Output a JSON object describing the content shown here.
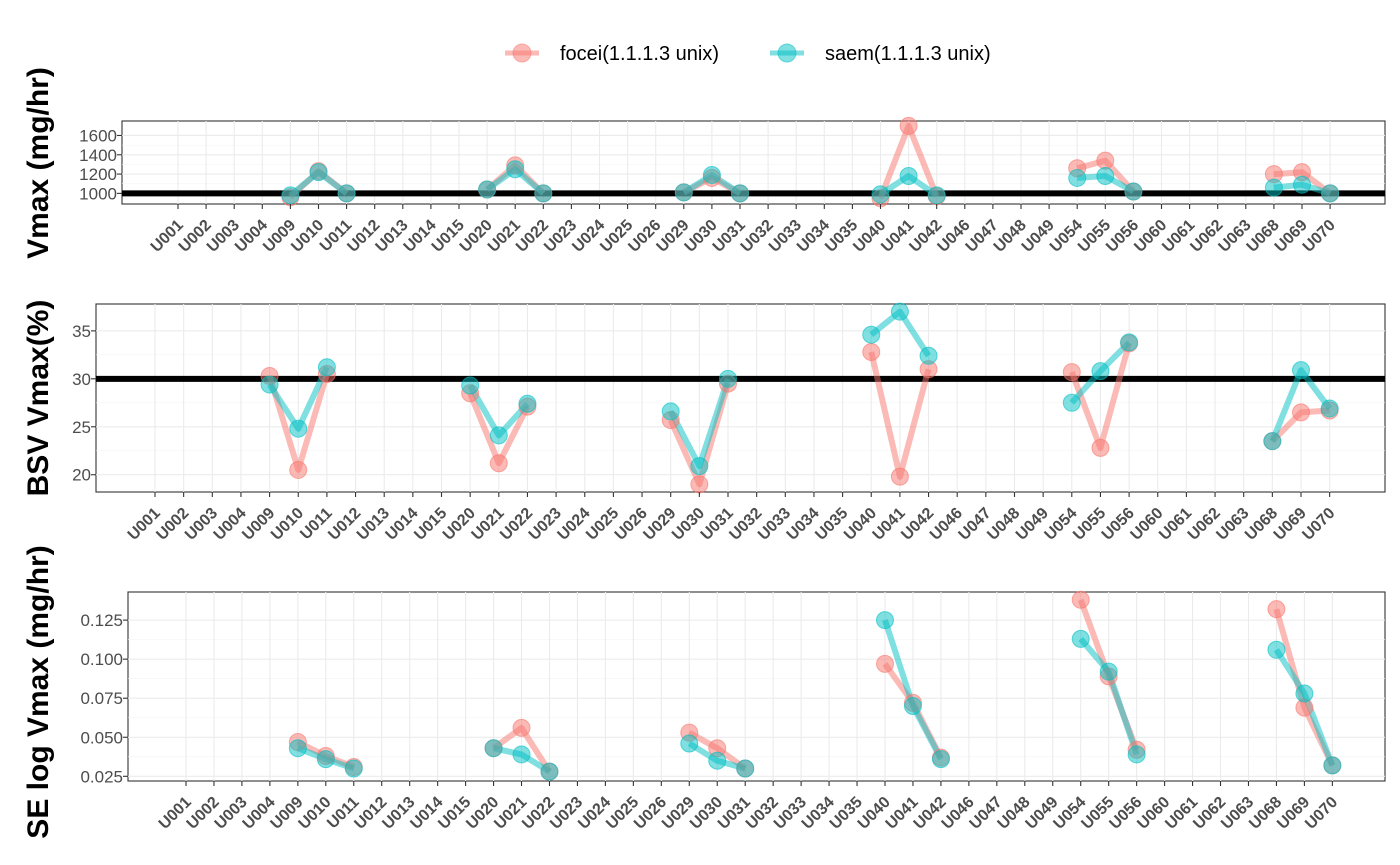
{
  "legend": {
    "position": "top",
    "entries": [
      {
        "label": "focei(1.1.1.3 unix)",
        "color": "#F8766D"
      },
      {
        "label": "saem(1.1.1.3 unix)",
        "color": "#00BFC4"
      }
    ]
  },
  "chart_data": [
    {
      "type": "line",
      "ylabel": "Vmax (mg/hr)",
      "ylim": [
        890,
        1750
      ],
      "yticks": [
        1000,
        1200,
        1400,
        1600
      ],
      "yticklabels": [
        "1000",
        "1200",
        "1400",
        "1600"
      ],
      "reference_line": 1000,
      "grid": true,
      "categories": [
        "U001",
        "U002",
        "U003",
        "U004",
        "U009",
        "U010",
        "U011",
        "U012",
        "U013",
        "U014",
        "U015",
        "U020",
        "U021",
        "U022",
        "U023",
        "U024",
        "U025",
        "U026",
        "U029",
        "U030",
        "U031",
        "U032",
        "U033",
        "U034",
        "U035",
        "U040",
        "U041",
        "U042",
        "U046",
        "U047",
        "U048",
        "U049",
        "U054",
        "U055",
        "U056",
        "U060",
        "U061",
        "U062",
        "U063",
        "U068",
        "U069",
        "U070"
      ],
      "series": [
        {
          "name": "focei(1.1.1.3 unix)",
          "color": "#F8766D",
          "values": [
            null,
            null,
            null,
            null,
            960,
            1230,
            1000,
            null,
            null,
            null,
            null,
            1040,
            1290,
            1000,
            null,
            null,
            null,
            null,
            1010,
            1160,
            1000,
            null,
            null,
            null,
            null,
            950,
            1700,
            970,
            null,
            null,
            null,
            null,
            1260,
            1340,
            1020,
            null,
            null,
            null,
            null,
            1200,
            1220,
            1000
          ]
        },
        {
          "name": "saem(1.1.1.3 unix)",
          "color": "#00BFC4",
          "values": [
            null,
            null,
            null,
            null,
            980,
            1220,
            1000,
            null,
            null,
            null,
            null,
            1040,
            1250,
            1000,
            null,
            null,
            null,
            null,
            1010,
            1190,
            1000,
            null,
            null,
            null,
            null,
            990,
            1180,
            980,
            null,
            null,
            null,
            null,
            1160,
            1180,
            1020,
            null,
            null,
            null,
            null,
            1060,
            1090,
            1000
          ]
        }
      ]
    },
    {
      "type": "line",
      "ylabel": "BSV Vmax(%)",
      "ylim": [
        18.2,
        37.8
      ],
      "yticks": [
        20,
        25,
        30,
        35
      ],
      "yticklabels": [
        "20",
        "25",
        "30",
        "35"
      ],
      "reference_line": 30,
      "grid": true,
      "categories": [
        "U001",
        "U002",
        "U003",
        "U004",
        "U009",
        "U010",
        "U011",
        "U012",
        "U013",
        "U014",
        "U015",
        "U020",
        "U021",
        "U022",
        "U023",
        "U024",
        "U025",
        "U026",
        "U029",
        "U030",
        "U031",
        "U032",
        "U033",
        "U034",
        "U035",
        "U040",
        "U041",
        "U042",
        "U046",
        "U047",
        "U048",
        "U049",
        "U054",
        "U055",
        "U056",
        "U060",
        "U061",
        "U062",
        "U063",
        "U068",
        "U069",
        "U070"
      ],
      "series": [
        {
          "name": "focei(1.1.1.3 unix)",
          "color": "#F8766D",
          "values": [
            null,
            null,
            null,
            null,
            30.3,
            20.5,
            30.5,
            null,
            null,
            null,
            null,
            28.5,
            21.2,
            27.1,
            null,
            null,
            null,
            null,
            25.7,
            19.0,
            29.5,
            null,
            null,
            null,
            null,
            32.8,
            19.8,
            31.0,
            null,
            null,
            null,
            null,
            30.7,
            22.8,
            33.7,
            null,
            null,
            null,
            null,
            23.5,
            26.5,
            26.7
          ]
        },
        {
          "name": "saem(1.1.1.3 unix)",
          "color": "#00BFC4",
          "values": [
            null,
            null,
            null,
            null,
            29.4,
            24.8,
            31.2,
            null,
            null,
            null,
            null,
            29.3,
            24.1,
            27.4,
            null,
            null,
            null,
            null,
            26.6,
            20.9,
            30.0,
            null,
            null,
            null,
            null,
            34.6,
            37.0,
            32.4,
            null,
            null,
            null,
            null,
            27.5,
            30.8,
            33.8,
            null,
            null,
            null,
            null,
            23.5,
            30.9,
            26.9
          ]
        }
      ]
    },
    {
      "type": "line",
      "ylabel": "SE log Vmax (mg/hr)",
      "ylim": [
        0.022,
        0.143
      ],
      "yticks": [
        0.025,
        0.05,
        0.075,
        0.1,
        0.125
      ],
      "yticklabels": [
        "0.025",
        "0.050",
        "0.075",
        "0.100",
        "0.125"
      ],
      "grid": true,
      "categories": [
        "U001",
        "U002",
        "U003",
        "U004",
        "U009",
        "U010",
        "U011",
        "U012",
        "U013",
        "U014",
        "U015",
        "U020",
        "U021",
        "U022",
        "U023",
        "U024",
        "U025",
        "U026",
        "U029",
        "U030",
        "U031",
        "U032",
        "U033",
        "U034",
        "U035",
        "U040",
        "U041",
        "U042",
        "U046",
        "U047",
        "U048",
        "U049",
        "U054",
        "U055",
        "U056",
        "U060",
        "U061",
        "U062",
        "U063",
        "U068",
        "U069",
        "U070"
      ],
      "series": [
        {
          "name": "focei(1.1.1.3 unix)",
          "color": "#F8766D",
          "values": [
            null,
            null,
            null,
            null,
            0.047,
            0.038,
            0.031,
            null,
            null,
            null,
            null,
            0.043,
            0.056,
            0.028,
            null,
            null,
            null,
            null,
            0.053,
            0.043,
            0.03,
            null,
            null,
            null,
            null,
            0.097,
            0.072,
            0.037,
            null,
            null,
            null,
            null,
            0.138,
            0.089,
            0.042,
            null,
            null,
            null,
            null,
            0.132,
            0.069,
            0.032
          ]
        },
        {
          "name": "saem(1.1.1.3 unix)",
          "color": "#00BFC4",
          "values": [
            null,
            null,
            null,
            null,
            0.043,
            0.036,
            0.03,
            null,
            null,
            null,
            null,
            0.043,
            0.039,
            0.028,
            null,
            null,
            null,
            null,
            0.046,
            0.035,
            0.03,
            null,
            null,
            null,
            null,
            0.125,
            0.07,
            0.036,
            null,
            null,
            null,
            null,
            0.113,
            0.092,
            0.039,
            null,
            null,
            null,
            null,
            0.106,
            0.078,
            0.032
          ]
        }
      ]
    }
  ]
}
